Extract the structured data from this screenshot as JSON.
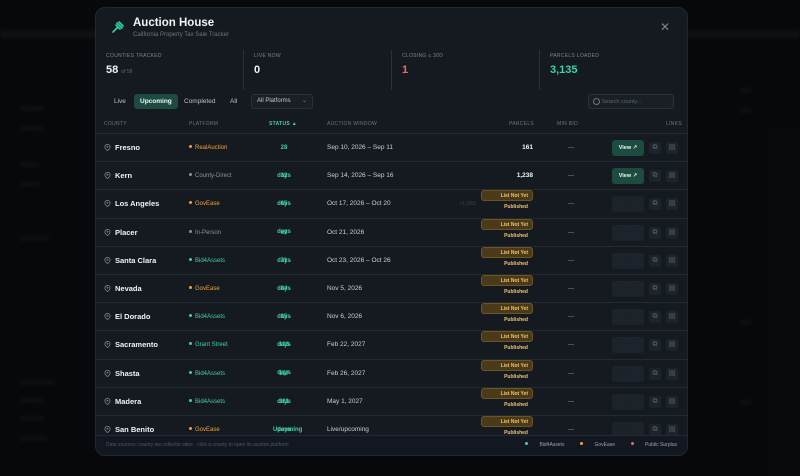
{
  "modal": {
    "title": "Auction House",
    "subtitle": "California Property Tax Sale Tracker"
  },
  "stats": [
    {
      "label": "Counties Tracked",
      "value": "58",
      "sub": "of 58"
    },
    {
      "label": "Live Now",
      "value": "0",
      "sub": ""
    },
    {
      "label": "Closing ≤ 30d",
      "value": "1",
      "sub": ""
    },
    {
      "label": "Parcels Loaded",
      "value": "3,135",
      "sub": ""
    }
  ],
  "filters": {
    "tabs": [
      "Live",
      "Upcoming",
      "Completed",
      "All"
    ],
    "active_tab": "Upcoming",
    "platform_select": "All Platforms",
    "search_placeholder": "Search county..."
  },
  "table": {
    "headers": {
      "county": "County",
      "platform": "Platform",
      "status": "Status",
      "window": "Auction Window",
      "parcels": "Parcels",
      "minbid": "Min Bid",
      "links": "Links"
    },
    "view_label": "View ↗",
    "rows": [
      {
        "county": "Fresno",
        "platform": "RealAuction",
        "platform_color": "#f0a23a",
        "status": "28 days",
        "window": "Sep 10, 2026 – Sep 11",
        "parcels": "161",
        "pill": "",
        "ghost": "",
        "minbid": "—",
        "view": true
      },
      {
        "county": "Kern",
        "platform": "County-Direct",
        "platform_color": "#8a939c",
        "status": "32 days",
        "window": "Sep 14, 2026 – Sep 16",
        "parcels": "1,238",
        "pill": "",
        "ghost": "",
        "minbid": "—",
        "view": true
      },
      {
        "county": "Los Angeles",
        "platform": "GovEase",
        "platform_color": "#f0a23a",
        "status": "65 days",
        "window": "Oct 17, 2026 – Oct 20",
        "parcels": "",
        "pill": "List Not Yet Published",
        "ghost": "≈1,283",
        "minbid": "—",
        "view": false
      },
      {
        "county": "Placer",
        "platform": "In-Person",
        "platform_color": "#8a939c",
        "status": "69 days",
        "window": "Oct 21, 2026",
        "parcels": "",
        "pill": "List Not Yet Published",
        "ghost": "",
        "minbid": "—",
        "view": false
      },
      {
        "county": "Santa Clara",
        "platform": "Bid4Assets",
        "platform_color": "#3ed1a6",
        "status": "71 days",
        "window": "Oct 23, 2026 – Oct 26",
        "parcels": "",
        "pill": "List Not Yet Published",
        "ghost": "",
        "minbid": "—",
        "view": false
      },
      {
        "county": "Nevada",
        "platform": "GovEase",
        "platform_color": "#f0a23a",
        "status": "84 days",
        "window": "Nov 5, 2026",
        "parcels": "",
        "pill": "List Not Yet Published",
        "ghost": "",
        "minbid": "—",
        "view": false
      },
      {
        "county": "El Dorado",
        "platform": "Bid4Assets",
        "platform_color": "#3ed1a6",
        "status": "85 days",
        "window": "Nov 6, 2026",
        "parcels": "",
        "pill": "List Not Yet Published",
        "ghost": "",
        "minbid": "—",
        "view": false
      },
      {
        "county": "Sacramento",
        "platform": "Grant Street",
        "platform_color": "#3ed1a6",
        "status": "193 days",
        "window": "Feb 22, 2027",
        "parcels": "",
        "pill": "List Not Yet Published",
        "ghost": "",
        "minbid": "—",
        "view": false
      },
      {
        "county": "Shasta",
        "platform": "Bid4Assets",
        "platform_color": "#3ed1a6",
        "status": "197 days",
        "window": "Feb 26, 2027",
        "parcels": "",
        "pill": "List Not Yet Published",
        "ghost": "",
        "minbid": "—",
        "view": false
      },
      {
        "county": "Madera",
        "platform": "Bid4Assets",
        "platform_color": "#3ed1a6",
        "status": "261 days",
        "window": "May 1, 2027",
        "parcels": "",
        "pill": "List Not Yet Published",
        "ghost": "",
        "minbid": "—",
        "view": false
      },
      {
        "county": "San Benito",
        "platform": "GovEase",
        "platform_color": "#f0a23a",
        "status": "Upcoming",
        "window": "Live/upcoming",
        "parcels": "",
        "pill": "List Not Yet Published",
        "ghost": "",
        "minbid": "—",
        "view": false
      }
    ]
  },
  "footer": {
    "text": "Data sources: county tax collector sites · click a county to open its auction platform",
    "legend": [
      {
        "label": "Bid4Assets",
        "color": "#3ed1a6"
      },
      {
        "label": "GovEase",
        "color": "#f0a23a"
      },
      {
        "label": "Public Surplus",
        "color": "#e8667a"
      }
    ]
  }
}
